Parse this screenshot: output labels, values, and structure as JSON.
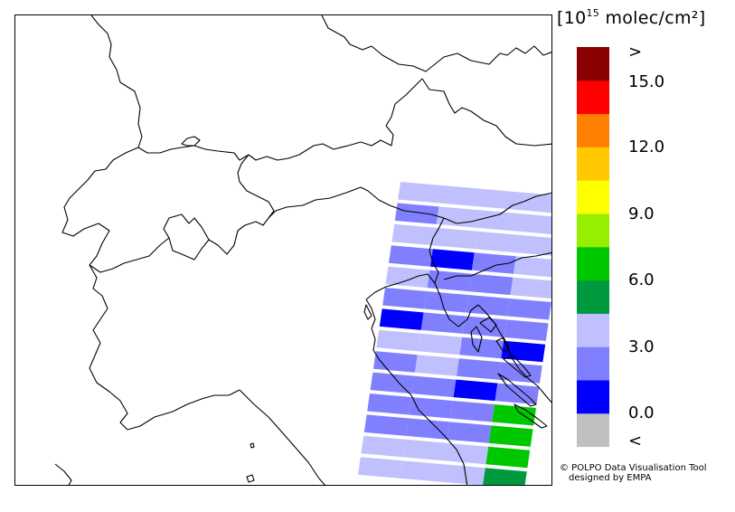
{
  "legend": {
    "unit_exp": "15",
    "unit_suffix": "molec/cm²",
    "colors": [
      "#c0c0c0",
      "#0000ff",
      "#8080ff",
      "#c0c0ff",
      "#009a3e",
      "#00c800",
      "#96ee00",
      "#ffff00",
      "#ffc800",
      "#ff8000",
      "#ff0000",
      "#8b0000"
    ],
    "ticks": [
      ">",
      "15.0",
      "12.0",
      "9.0",
      "6.0",
      "3.0",
      "0.0",
      "<"
    ]
  },
  "credit": {
    "line1": "© POLPO Data Visualisation Tool",
    "line2": "designed by EMPA"
  },
  "swath": {
    "pixel_colors": [
      [
        "#c0c0ff",
        "#c0c0ff",
        "#c0c0ff",
        "#c0c0ff"
      ],
      [
        "#8080ff",
        "#c0c0ff",
        "#c0c0ff",
        "#c0c0ff"
      ],
      [
        "#c0c0ff",
        "#c0c0ff",
        "#c0c0ff",
        "#c0c0ff"
      ],
      [
        "#8080ff",
        "#0000ff",
        "#8080ff",
        "#c0c0ff"
      ],
      [
        "#c0c0ff",
        "#8080ff",
        "#8080ff",
        "#c0c0ff"
      ],
      [
        "#8080ff",
        "#8080ff",
        "#8080ff",
        "#8080ff"
      ],
      [
        "#0000ff",
        "#8080ff",
        "#8080ff",
        "#8080ff"
      ],
      [
        "#c0c0ff",
        "#c0c0ff",
        "#8080ff",
        "#0000ff"
      ],
      [
        "#8080ff",
        "#c0c0ff",
        "#8080ff",
        "#8080ff"
      ],
      [
        "#8080ff",
        "#8080ff",
        "#0000ff",
        "#8080ff"
      ],
      [
        "#8080ff",
        "#8080ff",
        "#8080ff",
        "#00c800"
      ],
      [
        "#8080ff",
        "#8080ff",
        "#8080ff",
        "#00c800"
      ],
      [
        "#c0c0ff",
        "#c0c0ff",
        "#c0c0ff",
        "#00c800"
      ],
      [
        "#c0c0ff",
        "#c0c0ff",
        "#c0c0ff",
        "#009a3e"
      ]
    ]
  }
}
